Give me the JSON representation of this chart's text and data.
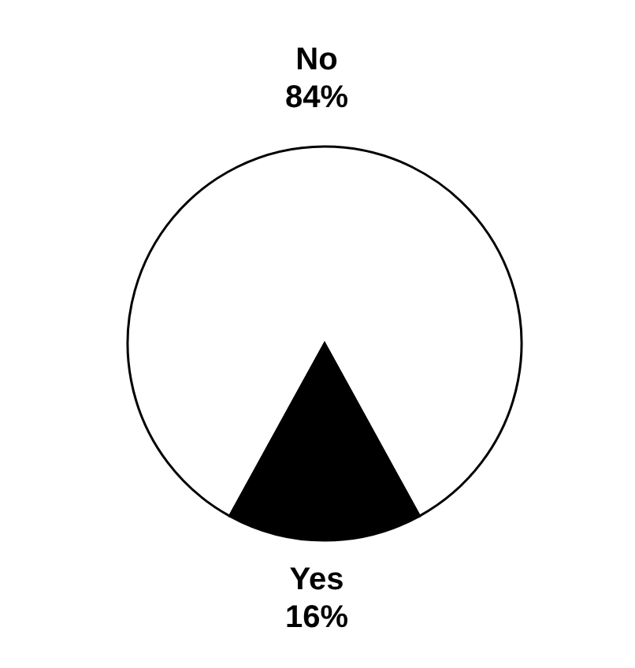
{
  "chart_data": {
    "type": "pie",
    "categories": [
      "No",
      "Yes"
    ],
    "values": [
      84,
      16
    ],
    "value_labels": [
      "84%",
      "16%"
    ],
    "colors": [
      "#ffffff",
      "#000000"
    ],
    "legend": false
  }
}
